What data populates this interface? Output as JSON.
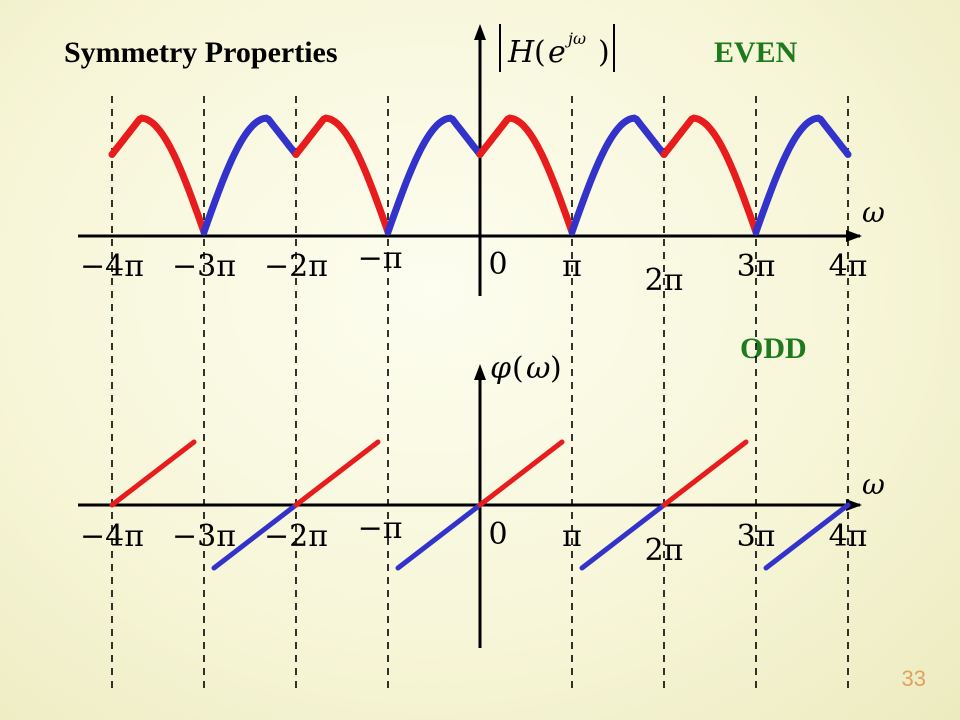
{
  "title": "Symmetry Properties",
  "even_label": "EVEN",
  "odd_label": "ODD",
  "page_number": "33",
  "magnitude_axis_label": "|H(e^{jω})|",
  "magnitude_axis_parts": {
    "H": "H",
    "open": "(",
    "e": "e",
    "exp": "jω",
    "close": ")"
  },
  "phase_axis_label": "φ(ω)",
  "phase_axis_parts": {
    "phi": "φ",
    "open": "(",
    "w": "ω",
    "close": ")"
  },
  "omega_label": "ω",
  "tick_labels": [
    "−4π",
    "−3π",
    "−2π",
    "−π",
    "0",
    "π",
    "2π",
    "3π",
    "4π"
  ],
  "colors": {
    "red_segment": "#e81c1c",
    "blue_segment": "#3333cc",
    "axis": "#000000",
    "label_green": "#1d7a1d",
    "page_number": "#e0a064"
  }
}
